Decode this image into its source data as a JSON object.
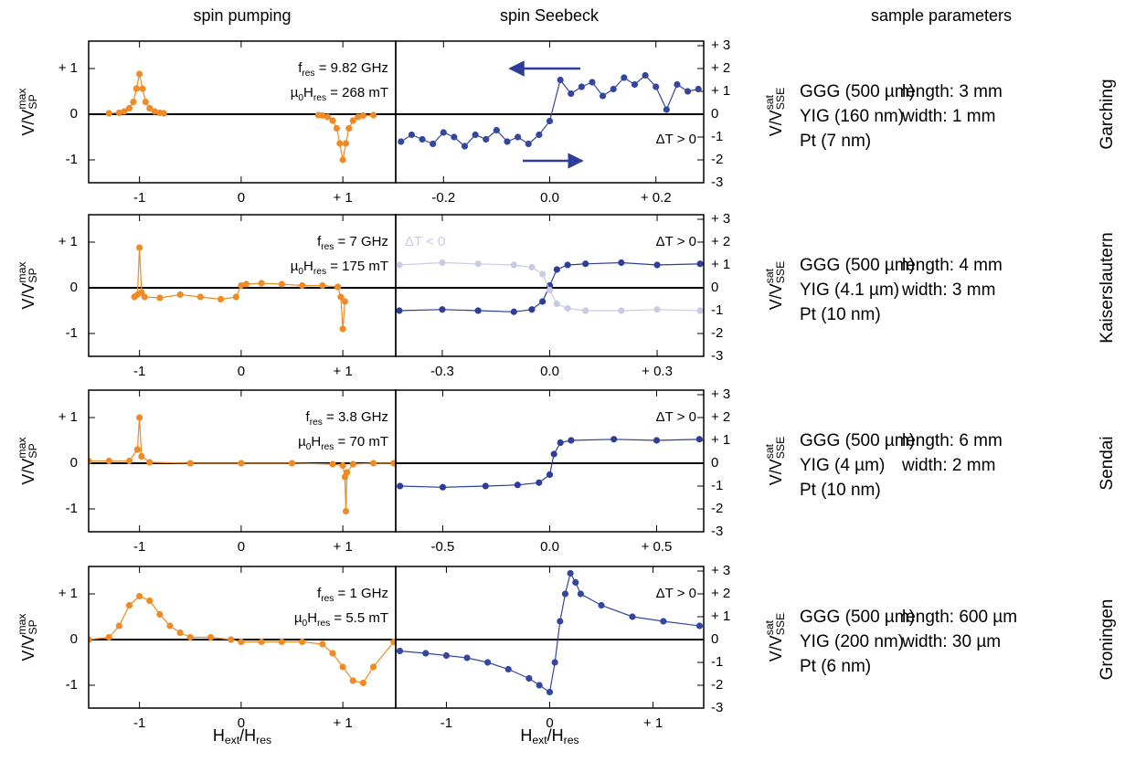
{
  "headers": [
    "spin pumping",
    "spin Seebeck",
    "sample parameters"
  ],
  "samples": [
    {
      "layers": [
        "GGG (500 µm)",
        "YIG (160 nm)",
        "Pt (7 nm)"
      ],
      "dims": [
        "length: 3 mm",
        "width: 1 mm"
      ],
      "site": "Garching"
    },
    {
      "layers": [
        "GGG (500 µm)",
        "YIG (4.1 µm)",
        "Pt (10 nm)"
      ],
      "dims": [
        "length: 4 mm",
        "width: 3 mm"
      ],
      "site": "Kaiserslautern"
    },
    {
      "layers": [
        "GGG (500 µm)",
        "YIG (4 µm)",
        "Pt (10 nm)"
      ],
      "dims": [
        "length: 6 mm",
        "width: 2 mm"
      ],
      "site": "Sendai"
    },
    {
      "layers": [
        "GGG (500 µm)",
        "YIG (200 nm)",
        "Pt (6 nm)"
      ],
      "dims": [
        "length: 600 µm",
        "width: 30 µm"
      ],
      "site": "Groningen"
    }
  ],
  "chart_data": [
    {
      "type": "line",
      "xlim": [
        -1.5,
        1.52
      ],
      "ylim": [
        -1.5,
        1.6
      ],
      "xticks": [
        -1,
        0,
        {
          "value": 1,
          "label": "+ 1"
        }
      ],
      "yticks": [
        {
          "value": 1,
          "label": "+ 1"
        },
        0,
        -1
      ],
      "ylabel": [
        {
          "t": "V/V"
        },
        {
          "sup": "max"
        },
        {
          "sub": "SP"
        }
      ],
      "annotations": [
        [
          {
            "t": "f"
          },
          {
            "sub": "res"
          },
          {
            "t": " = 9.82 GHz"
          }
        ],
        [
          {
            "t": "µ"
          },
          {
            "sub": "0"
          },
          {
            "t": "H"
          },
          {
            "sub": "res"
          },
          {
            "t": " = 268 mT"
          }
        ]
      ],
      "x": [
        -1.3,
        -1.2,
        -1.15,
        -1.1,
        -1.06,
        -1.03,
        -1.0,
        -0.97,
        -0.94,
        -0.9,
        -0.85,
        -0.8,
        -0.76,
        0,
        0.76,
        0.8,
        0.85,
        0.9,
        0.94,
        0.97,
        1.0,
        1.03,
        1.06,
        1.1,
        1.15,
        1.2,
        1.3
      ],
      "series": [
        {
          "color": "#f08a24",
          "values": [
            0.02,
            0.03,
            0.06,
            0.13,
            0.27,
            0.56,
            0.88,
            0.56,
            0.27,
            0.13,
            0.06,
            0.03,
            0.02,
            null,
            -0.02,
            -0.03,
            -0.06,
            -0.14,
            -0.31,
            -0.64,
            -1.0,
            -0.64,
            -0.31,
            -0.14,
            -0.06,
            -0.03,
            -0.02
          ]
        }
      ]
    },
    {
      "type": "line",
      "xlim": [
        -0.29,
        0.29
      ],
      "ylim": [
        -3,
        3.2
      ],
      "xticks": [
        -0.2,
        {
          "value": 0,
          "label": "0.0"
        },
        {
          "value": 0.2,
          "label": "+ 0.2"
        }
      ],
      "yticks": [
        {
          "value": 3,
          "label": "+ 3"
        },
        {
          "value": 2,
          "label": "+ 2"
        },
        {
          "value": 1,
          "label": "+ 1"
        },
        0,
        -1,
        -2,
        -3
      ],
      "ylabel": [
        {
          "t": "V/V"
        },
        {
          "sup": "sat"
        },
        {
          "sub": "SSE"
        }
      ],
      "x": [
        -0.28,
        -0.26,
        -0.24,
        -0.22,
        -0.2,
        -0.18,
        -0.16,
        -0.14,
        -0.12,
        -0.1,
        -0.08,
        -0.06,
        -0.04,
        -0.02,
        0,
        0.02,
        0.04,
        0.06,
        0.08,
        0.1,
        0.12,
        0.14,
        0.16,
        0.18,
        0.2,
        0.22,
        0.24,
        0.26,
        0.28
      ],
      "series": [
        {
          "name": "ΔT > 0",
          "color": "#34479f",
          "values": [
            -1.2,
            -0.9,
            -1.1,
            -1.3,
            -0.8,
            -1.0,
            -1.4,
            -0.9,
            -1.1,
            -0.7,
            -1.2,
            -1.0,
            -1.3,
            -0.9,
            -0.3,
            1.5,
            0.9,
            1.2,
            1.4,
            0.8,
            1.1,
            1.6,
            1.3,
            1.7,
            1.2,
            0.2,
            1.3,
            1.0,
            1.1
          ]
        }
      ]
    },
    {
      "type": "line",
      "xlim": [
        -1.5,
        1.52
      ],
      "ylim": [
        -1.5,
        1.6
      ],
      "xticks": [
        -1,
        0,
        {
          "value": 1,
          "label": "+ 1"
        }
      ],
      "yticks": [
        {
          "value": 1,
          "label": "+ 1"
        },
        0,
        -1
      ],
      "ylabel": [
        {
          "t": "V/V"
        },
        {
          "sup": "max"
        },
        {
          "sub": "SP"
        }
      ],
      "annotations": [
        [
          {
            "t": "f"
          },
          {
            "sub": "res"
          },
          {
            "t": " = 7 GHz"
          }
        ],
        [
          {
            "t": "µ"
          },
          {
            "sub": "0"
          },
          {
            "t": "H"
          },
          {
            "sub": "res"
          },
          {
            "t": " = 175 mT"
          }
        ]
      ],
      "x": [
        -1.05,
        -1.02,
        -1.0,
        -0.98,
        -0.95,
        -0.8,
        -0.6,
        -0.4,
        -0.2,
        -0.05,
        0,
        0.05,
        0.2,
        0.4,
        0.6,
        0.8,
        0.95,
        0.98,
        1.0,
        1.02
      ],
      "series": [
        {
          "color": "#f08a24",
          "values": [
            -0.2,
            -0.15,
            0.88,
            -0.1,
            -0.2,
            -0.22,
            -0.15,
            -0.2,
            -0.25,
            -0.2,
            0.05,
            0.08,
            0.1,
            0.08,
            0.05,
            0.05,
            0.02,
            -0.2,
            -0.9,
            -0.3
          ]
        }
      ]
    },
    {
      "type": "line",
      "xlim": [
        -0.43,
        0.43
      ],
      "ylim": [
        -3,
        3.2
      ],
      "xticks": [
        -0.3,
        {
          "value": 0,
          "label": "0.0"
        },
        {
          "value": 0.3,
          "label": "+ 0.3"
        }
      ],
      "yticks": [
        {
          "value": 3,
          "label": "+ 3"
        },
        {
          "value": 2,
          "label": "+ 2"
        },
        {
          "value": 1,
          "label": "+ 1"
        },
        0,
        -1,
        -2,
        -3
      ],
      "ylabel": [
        {
          "t": "V/V"
        },
        {
          "sup": "sat"
        },
        {
          "sub": "SSE"
        }
      ],
      "x": [
        -0.42,
        -0.3,
        -0.2,
        -0.1,
        -0.05,
        -0.02,
        0,
        0.02,
        0.05,
        0.1,
        0.2,
        0.3,
        0.42
      ],
      "series": [
        {
          "name": "ΔT > 0",
          "color": "#2e3d99",
          "values": [
            -1.0,
            -0.95,
            -1.0,
            -1.05,
            -0.95,
            -0.6,
            0.1,
            0.8,
            1.0,
            1.05,
            1.1,
            1.0,
            1.05
          ]
        },
        {
          "name": "ΔT < 0",
          "color": "#c9cbe4",
          "values": [
            1.0,
            1.1,
            1.05,
            1.0,
            0.9,
            0.6,
            -0.1,
            -0.7,
            -0.9,
            -1.0,
            -1.0,
            -0.95,
            -1.0
          ]
        }
      ]
    },
    {
      "type": "line",
      "xlim": [
        -1.5,
        1.52
      ],
      "ylim": [
        -1.5,
        1.6
      ],
      "xticks": [
        -1,
        0,
        {
          "value": 1,
          "label": "+ 1"
        }
      ],
      "yticks": [
        {
          "value": 1,
          "label": "+ 1"
        },
        0,
        -1
      ],
      "ylabel": [
        {
          "t": "V/V"
        },
        {
          "sup": "max"
        },
        {
          "sub": "SP"
        }
      ],
      "annotations": [
        [
          {
            "t": "f"
          },
          {
            "sub": "res"
          },
          {
            "t": " = 3.8 GHz"
          }
        ],
        [
          {
            "t": "µ"
          },
          {
            "sub": "0"
          },
          {
            "t": "H"
          },
          {
            "sub": "res"
          },
          {
            "t": " = 70 mT"
          }
        ]
      ],
      "x": [
        -1.5,
        -1.3,
        -1.1,
        -1.02,
        -1.0,
        -0.98,
        -0.9,
        -0.5,
        0,
        0.5,
        0.9,
        1.0,
        1.02,
        1.03,
        1.04,
        1.1,
        1.3,
        1.5
      ],
      "series": [
        {
          "color": "#f08a24",
          "values": [
            0.05,
            0.05,
            0.05,
            0.3,
            1.0,
            0.15,
            0.02,
            0,
            0,
            0,
            -0.02,
            -0.05,
            -0.3,
            -1.05,
            -0.2,
            -0.02,
            0,
            0
          ]
        }
      ]
    },
    {
      "type": "line",
      "xlim": [
        -0.72,
        0.72
      ],
      "ylim": [
        -3,
        3.2
      ],
      "xticks": [
        -0.5,
        {
          "value": 0,
          "label": "0.0"
        },
        {
          "value": 0.5,
          "label": "+ 0.5"
        }
      ],
      "yticks": [
        {
          "value": 3,
          "label": "+ 3"
        },
        {
          "value": 2,
          "label": "+ 2"
        },
        {
          "value": 1,
          "label": "+ 1"
        },
        0,
        -1,
        -2,
        -3
      ],
      "ylabel": [
        {
          "t": "V/V"
        },
        {
          "sup": "sat"
        },
        {
          "sub": "SSE"
        }
      ],
      "x": [
        -0.7,
        -0.5,
        -0.3,
        -0.15,
        -0.05,
        0,
        0.02,
        0.05,
        0.1,
        0.3,
        0.5,
        0.7
      ],
      "series": [
        {
          "name": "ΔT > 0",
          "color": "#2e3d99",
          "values": [
            -1.0,
            -1.05,
            -1.0,
            -0.95,
            -0.85,
            -0.5,
            0.4,
            0.9,
            1.0,
            1.05,
            1.0,
            1.05
          ]
        }
      ]
    },
    {
      "type": "line",
      "xlim": [
        -1.5,
        1.52
      ],
      "ylim": [
        -1.5,
        1.6
      ],
      "xticks": [
        -1,
        0,
        {
          "value": 1,
          "label": "+ 1"
        }
      ],
      "yticks": [
        {
          "value": 1,
          "label": "+ 1"
        },
        0,
        -1
      ],
      "ylabel": [
        {
          "t": "V/V"
        },
        {
          "sup": "max"
        },
        {
          "sub": "SP"
        }
      ],
      "xlabel": [
        {
          "t": "H"
        },
        {
          "sub": "ext"
        },
        {
          "t": "/H"
        },
        {
          "sub": "res"
        }
      ],
      "annotations": [
        [
          {
            "t": "f"
          },
          {
            "sub": "res"
          },
          {
            "t": " = 1 GHz"
          }
        ],
        [
          {
            "t": "µ"
          },
          {
            "sub": "0"
          },
          {
            "t": "H"
          },
          {
            "sub": "res"
          },
          {
            "t": " = 5.5 mT"
          }
        ]
      ],
      "x": [
        -1.5,
        -1.3,
        -1.2,
        -1.1,
        -1.0,
        -0.9,
        -0.8,
        -0.7,
        -0.6,
        -0.5,
        -0.3,
        -0.1,
        0,
        0.2,
        0.4,
        0.6,
        0.8,
        0.9,
        1.0,
        1.1,
        1.2,
        1.3,
        1.5
      ],
      "series": [
        {
          "color": "#f08a24",
          "values": [
            0,
            0.05,
            0.3,
            0.75,
            0.95,
            0.85,
            0.55,
            0.3,
            0.15,
            0.05,
            0.05,
            0,
            -0.05,
            -0.05,
            -0.05,
            -0.05,
            -0.1,
            -0.3,
            -0.6,
            -0.9,
            -0.95,
            -0.6,
            -0.05
          ]
        }
      ]
    },
    {
      "type": "line",
      "xlim": [
        -1.49,
        1.49
      ],
      "ylim": [
        -3,
        3.2
      ],
      "xticks": [
        -1,
        0,
        {
          "value": 1,
          "label": "+ 1"
        }
      ],
      "yticks": [
        {
          "value": 3,
          "label": "+ 3"
        },
        {
          "value": 2,
          "label": "+ 2"
        },
        {
          "value": 1,
          "label": "+ 1"
        },
        0,
        -1,
        -2,
        -3
      ],
      "ylabel": [
        {
          "t": "V/V"
        },
        {
          "sup": "sat"
        },
        {
          "sub": "SSE"
        }
      ],
      "xlabel": [
        {
          "t": "H"
        },
        {
          "sub": "ext"
        },
        {
          "t": "/H"
        },
        {
          "sub": "res"
        }
      ],
      "x": [
        -1.45,
        -1.2,
        -1.0,
        -0.8,
        -0.6,
        -0.4,
        -0.2,
        -0.1,
        0,
        0.05,
        0.1,
        0.15,
        0.2,
        0.25,
        0.3,
        0.5,
        0.8,
        1.1,
        1.45
      ],
      "series": [
        {
          "name": "ΔT > 0",
          "color": "#34479f",
          "values": [
            -0.5,
            -0.6,
            -0.7,
            -0.8,
            -1.0,
            -1.3,
            -1.7,
            -2.0,
            -2.3,
            -1.0,
            0.8,
            2.0,
            2.9,
            2.5,
            2.0,
            1.5,
            1.0,
            0.8,
            0.6
          ]
        }
      ]
    }
  ]
}
